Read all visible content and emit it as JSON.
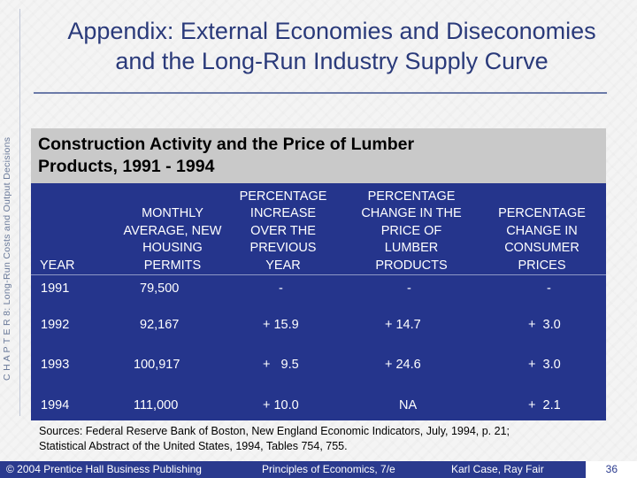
{
  "side_label": "C H A P T E R 8: Long-Run Costs and Output Decisions",
  "title_line1": "Appendix:  External Economies and Diseconomies",
  "title_line2": "and the Long-Run Industry Supply Curve",
  "table": {
    "title_line1": "Construction Activity and the Price of Lumber",
    "title_line2": "Products, 1991 - 1994",
    "columns": [
      [
        "YEAR"
      ],
      [
        "MONTHLY",
        "AVERAGE, NEW",
        "HOUSING",
        "PERMITS"
      ],
      [
        "PERCENTAGE",
        "INCREASE",
        "OVER THE",
        "PREVIOUS",
        "YEAR"
      ],
      [
        "PERCENTAGE",
        "CHANGE IN THE",
        "PRICE OF",
        "LUMBER",
        "PRODUCTS"
      ],
      [
        "PERCENTAGE",
        "CHANGE IN",
        "CONSUMER",
        "PRICES"
      ]
    ],
    "rows": [
      [
        "1991",
        "79,500",
        "-",
        "-",
        "-"
      ],
      [
        "1992",
        "92,167",
        "+ 15.9",
        "+ 14.7",
        "+  3.0"
      ],
      [
        "1993",
        "100,917",
        "+   9.5",
        "+ 24.6",
        "+  3.0"
      ],
      [
        "1994",
        "111,000",
        "+ 10.0",
        "NA",
        "+  2.1"
      ]
    ]
  },
  "sources_line1": "Sources:  Federal Reserve Bank of Boston, New England Economic Indicators, July, 1994, p. 21;",
  "sources_line2": "Statistical Abstract of the United States, 1994, Tables 754, 755.",
  "footer": {
    "copyright": "© 2004 Prentice Hall Business Publishing",
    "book": "Principles of Economics, 7/e",
    "authors": "Karl Case, Ray Fair",
    "page": "36"
  },
  "colors": {
    "table_background": "#25358c",
    "table_header": "#c9c9c9",
    "title": "#2a3a7a",
    "footer_bar": "#2a3a8e"
  }
}
